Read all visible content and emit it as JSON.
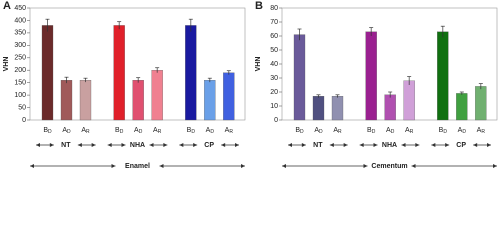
{
  "chart_data": [
    {
      "type": "bar",
      "panel_label": "A",
      "ylabel": "VHN",
      "xlabel": "Enamel",
      "groups": [
        "NT",
        "NHA",
        "CP"
      ],
      "categories": [
        "BD",
        "AD",
        "AR",
        "BD",
        "AD",
        "AR",
        "BD",
        "AD",
        "AR"
      ],
      "values": [
        380,
        160,
        160,
        380,
        160,
        200,
        380,
        160,
        190
      ],
      "errors": [
        25,
        12,
        8,
        15,
        10,
        10,
        25,
        8,
        8
      ],
      "colors": [
        "#6b2a2a",
        "#a05a5a",
        "#c9a0a0",
        "#e0202a",
        "#e05070",
        "#f08090",
        "#1a1aa0",
        "#6aa0e8",
        "#4060e0"
      ],
      "ylim": [
        0,
        450
      ],
      "yticks": [
        0,
        50,
        100,
        150,
        200,
        250,
        300,
        350,
        400,
        450
      ]
    },
    {
      "type": "bar",
      "panel_label": "B",
      "ylabel": "VHN",
      "xlabel": "Cementum",
      "groups": [
        "NT",
        "NHA",
        "CP"
      ],
      "categories": [
        "BD",
        "AD",
        "AR",
        "BD",
        "AD",
        "AR",
        "BD",
        "AD",
        "AR"
      ],
      "values": [
        61,
        17,
        17,
        63,
        18,
        28,
        63,
        19,
        24
      ],
      "errors": [
        4,
        1,
        1,
        3,
        2,
        3,
        4,
        1,
        2
      ],
      "colors": [
        "#6a5a9a",
        "#505080",
        "#9090b0",
        "#9a2090",
        "#b050b0",
        "#d0a0d8",
        "#107010",
        "#40a040",
        "#70b070"
      ],
      "ylim": [
        0,
        80
      ],
      "yticks": [
        0,
        10,
        20,
        30,
        40,
        50,
        60,
        70,
        80
      ]
    }
  ]
}
